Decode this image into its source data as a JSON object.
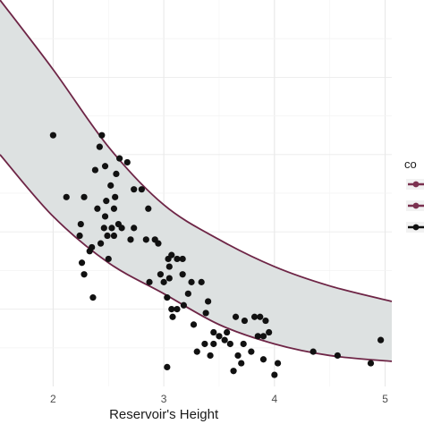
{
  "chart_data": {
    "type": "scatter",
    "title": "",
    "xlabel": "Reservoir's Height",
    "ylabel": "",
    "xlim": [
      1.52,
      5.06
    ],
    "ylim": [
      0,
      100
    ],
    "grid": true,
    "x_ticks": [
      "2",
      "3",
      "4",
      "5"
    ],
    "x_tick_values": [
      2,
      3,
      4,
      5
    ],
    "legend": {
      "title": "co",
      "position": "right",
      "entries": [
        {
          "label": "",
          "color": "#7b3150"
        },
        {
          "label": "",
          "color": "#7b3150"
        },
        {
          "label": "",
          "color": "#111111"
        }
      ]
    },
    "band": {
      "fill": "#dde1e1",
      "edge_color": "#6e2546",
      "x": [
        1.52,
        2.0,
        2.5,
        3.0,
        3.5,
        4.0,
        4.5,
        5.06
      ],
      "upper": [
        100,
        82,
        62,
        47,
        38,
        31,
        26,
        22
      ],
      "lower": [
        60,
        44,
        32,
        24,
        16,
        11,
        8,
        6.5
      ]
    },
    "series": [
      {
        "color": "#111111",
        "x": [
          2.0,
          2.12,
          2.25,
          2.28,
          2.38,
          2.42,
          2.44,
          2.47,
          2.52,
          2.48,
          2.56,
          2.57,
          2.4,
          2.47,
          2.53,
          2.59,
          2.62,
          2.55,
          2.5,
          2.33,
          2.24,
          2.28,
          2.35,
          2.43,
          2.49,
          2.46,
          2.55,
          2.6,
          2.67,
          2.73,
          2.8,
          2.86,
          2.84,
          2.73,
          2.7,
          2.92,
          2.95,
          3.04,
          3.07,
          3.12,
          3.17,
          3.05,
          2.97,
          2.87,
          3.0,
          3.03,
          3.07,
          3.12,
          3.18,
          3.22,
          3.17,
          3.25,
          3.34,
          3.4,
          3.45,
          3.38,
          3.27,
          3.3,
          3.45,
          3.5,
          3.57,
          3.65,
          3.73,
          3.82,
          3.85,
          3.9,
          3.95,
          3.72,
          3.67,
          3.6,
          3.55,
          3.63,
          3.7,
          3.79,
          3.9,
          4.0,
          4.03,
          3.08,
          3.05,
          3.37,
          3.42,
          2.36,
          3.03,
          2.26,
          3.87,
          3.92,
          4.35,
          4.57,
          4.87,
          4.96
        ],
        "y": [
          65,
          49,
          42,
          49,
          56,
          62,
          65,
          57,
          52,
          48,
          49,
          55,
          46,
          44,
          41,
          42,
          41,
          39,
          33,
          35,
          39,
          29,
          36,
          37,
          39,
          41,
          46,
          59,
          58,
          51,
          51,
          46,
          38,
          41,
          38,
          38,
          37,
          33,
          34,
          33,
          33,
          31,
          29,
          27,
          27,
          23,
          20,
          20,
          21,
          24,
          29,
          27,
          27,
          22,
          14,
          19,
          16,
          9,
          11,
          13,
          14,
          18,
          17,
          18,
          13,
          13,
          14,
          11,
          8,
          11,
          12,
          4,
          6,
          9,
          7,
          3,
          6,
          18,
          28,
          11,
          8,
          23,
          5,
          32,
          18,
          17,
          9,
          8,
          6,
          12
        ],
        "y_note": "vertical values read on an unlabeled scale (0 = bottom of panel, 100 = top)"
      }
    ]
  }
}
